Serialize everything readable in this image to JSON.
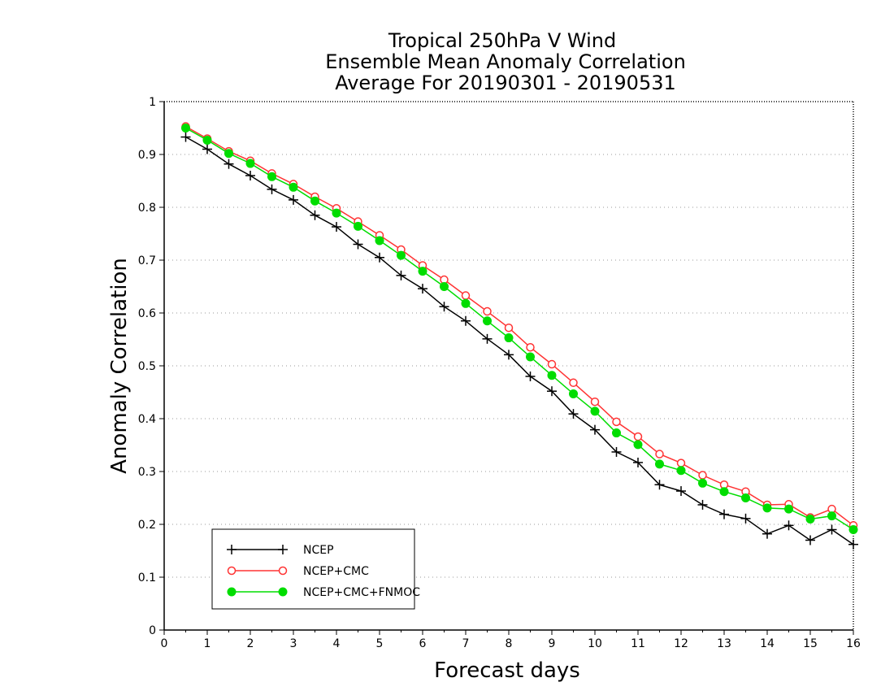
{
  "chart_data": {
    "type": "line",
    "title_lines": [
      "Tropical 250hPa V Wind",
      "Ensemble Mean Anomaly Correlation",
      "Average For 20190301 - 20190531"
    ],
    "xlabel": "Forecast days",
    "ylabel": "Anomaly Correlation",
    "xlim": [
      0,
      16
    ],
    "ylim": [
      0,
      1
    ],
    "xticks": [
      "0",
      "1",
      "2",
      "3",
      "4",
      "5",
      "6",
      "7",
      "8",
      "9",
      "10",
      "11",
      "12",
      "13",
      "14",
      "15",
      "16"
    ],
    "yticks": [
      "0",
      "0.1",
      "0.2",
      "0.3",
      "0.4",
      "0.5",
      "0.6",
      "0.7",
      "0.8",
      "0.9",
      "1"
    ],
    "grid": "dotted horizontal",
    "legend_position": "bottom-left",
    "x": [
      0.5,
      1,
      1.5,
      2,
      2.5,
      3,
      3.5,
      4,
      4.5,
      5,
      5.5,
      6,
      6.5,
      7,
      7.5,
      8,
      8.5,
      9,
      9.5,
      10,
      10.5,
      11,
      11.5,
      12,
      12.5,
      13,
      13.5,
      14,
      14.5,
      15,
      15.5,
      16
    ],
    "series": [
      {
        "name": "NCEP",
        "color": "#000000",
        "marker": "plus",
        "values": [
          0.933,
          0.91,
          0.882,
          0.86,
          0.834,
          0.814,
          0.785,
          0.763,
          0.73,
          0.705,
          0.671,
          0.646,
          0.612,
          0.585,
          0.551,
          0.521,
          0.48,
          0.452,
          0.409,
          0.379,
          0.337,
          0.317,
          0.275,
          0.263,
          0.237,
          0.219,
          0.211,
          0.182,
          0.198,
          0.17,
          0.19,
          0.162
        ]
      },
      {
        "name": "NCEP+CMC",
        "color": "#ff3333",
        "marker": "open-circle",
        "values": [
          0.953,
          0.93,
          0.906,
          0.888,
          0.864,
          0.844,
          0.82,
          0.798,
          0.773,
          0.747,
          0.72,
          0.69,
          0.663,
          0.633,
          0.603,
          0.572,
          0.535,
          0.503,
          0.468,
          0.432,
          0.394,
          0.366,
          0.333,
          0.316,
          0.293,
          0.275,
          0.262,
          0.237,
          0.238,
          0.213,
          0.229,
          0.198
        ]
      },
      {
        "name": "NCEP+CMC+FNMOC",
        "color": "#00dd00",
        "marker": "filled-circle",
        "values": [
          0.95,
          0.927,
          0.902,
          0.883,
          0.858,
          0.838,
          0.812,
          0.789,
          0.764,
          0.737,
          0.709,
          0.679,
          0.65,
          0.618,
          0.585,
          0.553,
          0.517,
          0.482,
          0.447,
          0.414,
          0.373,
          0.351,
          0.314,
          0.302,
          0.278,
          0.262,
          0.25,
          0.231,
          0.229,
          0.21,
          0.216,
          0.19
        ]
      }
    ]
  }
}
